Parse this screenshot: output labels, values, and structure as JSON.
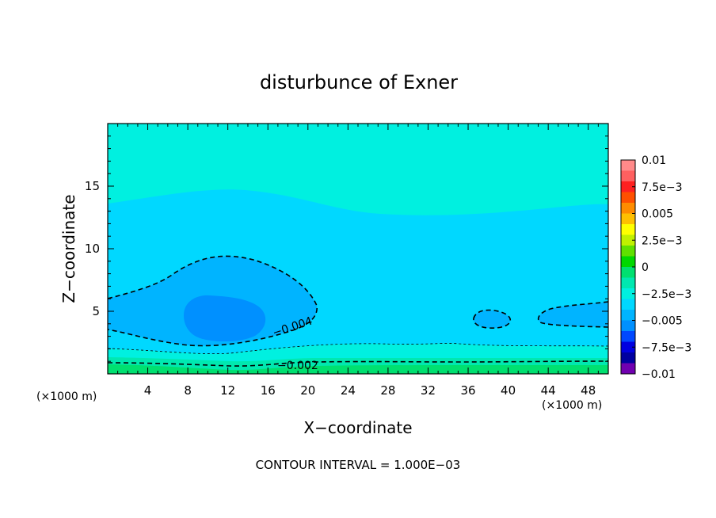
{
  "chart_data": {
    "type": "heatmap",
    "title": "disturbunce of Exner",
    "xlabel": "X−coordinate",
    "ylabel": "Z−coordinate",
    "x_unit_left": "(×1000 m)",
    "x_unit_right": "(×1000 m)",
    "xlim": [
      0,
      50
    ],
    "ylim": [
      0,
      20
    ],
    "x_ticks": [
      4,
      8,
      12,
      16,
      20,
      24,
      28,
      32,
      36,
      40,
      44,
      48
    ],
    "y_ticks": [
      5,
      10,
      15
    ],
    "footer": "CONTOUR INTERVAL = 1.000E−03",
    "contour_labels": [
      "−0.004",
      "−0.002"
    ],
    "colorbar": {
      "levels": [
        0.01,
        0.0075,
        0.005,
        0.0025,
        0,
        -0.0025,
        -0.005,
        -0.0075,
        -0.01
      ],
      "tick_labels": [
        "0.01",
        "7.5e−3",
        "0.005",
        "2.5e−3",
        "0",
        "−2.5e−3",
        "−0.005",
        "−7.5e−3",
        "−0.01"
      ],
      "colors": [
        "#ff8a8a",
        "#ff6060",
        "#ff2020",
        "#ff5000",
        "#ff8c00",
        "#ffc000",
        "#ffff00",
        "#c0f000",
        "#60e000",
        "#00d800",
        "#00e070",
        "#00e8b0",
        "#00f0e0",
        "#00d8ff",
        "#00b4ff",
        "#0090ff",
        "#0048ff",
        "#0000e0",
        "#0000a0",
        "#7000b0"
      ]
    },
    "fields": [
      {
        "range": [
          -0.003,
          -0.002
        ],
        "color": "#00f0e0"
      },
      {
        "range": [
          -0.004,
          -0.003
        ],
        "color": "#00d8ff"
      },
      {
        "range": [
          -0.005,
          -0.004
        ],
        "color": "#00b4ff"
      },
      {
        "range": [
          -0.006,
          -0.005
        ],
        "color": "#0090ff"
      },
      {
        "range": [
          -0.002,
          -0.001
        ],
        "color": "#00e8b0"
      },
      {
        "range": [
          -0.001,
          0
        ],
        "color": "#00e070"
      }
    ]
  }
}
